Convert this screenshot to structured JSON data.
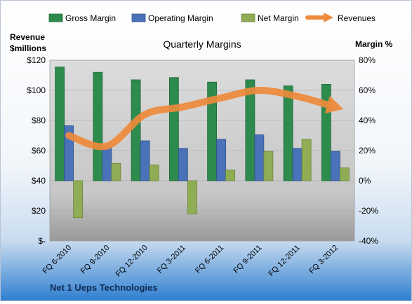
{
  "chart_data": {
    "type": "bar",
    "title": "Quarterly Margins",
    "footer": "Net 1 Ueps Technologies",
    "ylabel_left_line1": "Revenue",
    "ylabel_left_line2": "$millions",
    "ylabel_right": "Margin %",
    "categories": [
      "FQ 6-2010",
      "FQ 9-2010",
      "FQ 12-2010",
      "FQ 3-2011",
      "FQ 6-2011",
      "FQ 9-2011",
      "FQ 12-2011",
      "FQ 3-2012"
    ],
    "left_axis": {
      "min": 0,
      "max": 120,
      "step": 20,
      "tick_labels": [
        "$-",
        "$20",
        "$40",
        "$60",
        "$80",
        "$100",
        "$120"
      ]
    },
    "right_axis": {
      "min": -40,
      "max": 80,
      "step": 20,
      "tick_labels": [
        "-40%",
        "-20%",
        "0%",
        "20%",
        "40%",
        "60%",
        "80%"
      ]
    },
    "series": [
      {
        "name": "Gross Margin",
        "axis": "right",
        "type": "bar",
        "color": "#2e8b4e",
        "values": [
          75.5,
          72,
          67,
          68.5,
          65.5,
          67,
          63,
          64
        ]
      },
      {
        "name": "Operating Margin",
        "axis": "right",
        "type": "bar",
        "color": "#4a72b8",
        "values": [
          36.5,
          22,
          26.5,
          21.5,
          27.5,
          30.5,
          21.5,
          19.5
        ]
      },
      {
        "name": "Net Margin",
        "axis": "right",
        "type": "bar",
        "color": "#8fad55",
        "values": [
          -24.5,
          11.5,
          10.5,
          -22,
          7,
          19.5,
          27.5,
          8.5
        ]
      },
      {
        "name": "Revenues",
        "axis": "left",
        "type": "line",
        "color": "#ee8a3c",
        "values": [
          70,
          63,
          84,
          89,
          95,
          100,
          96,
          89
        ]
      }
    ],
    "grid": true,
    "legend_position": "top"
  }
}
